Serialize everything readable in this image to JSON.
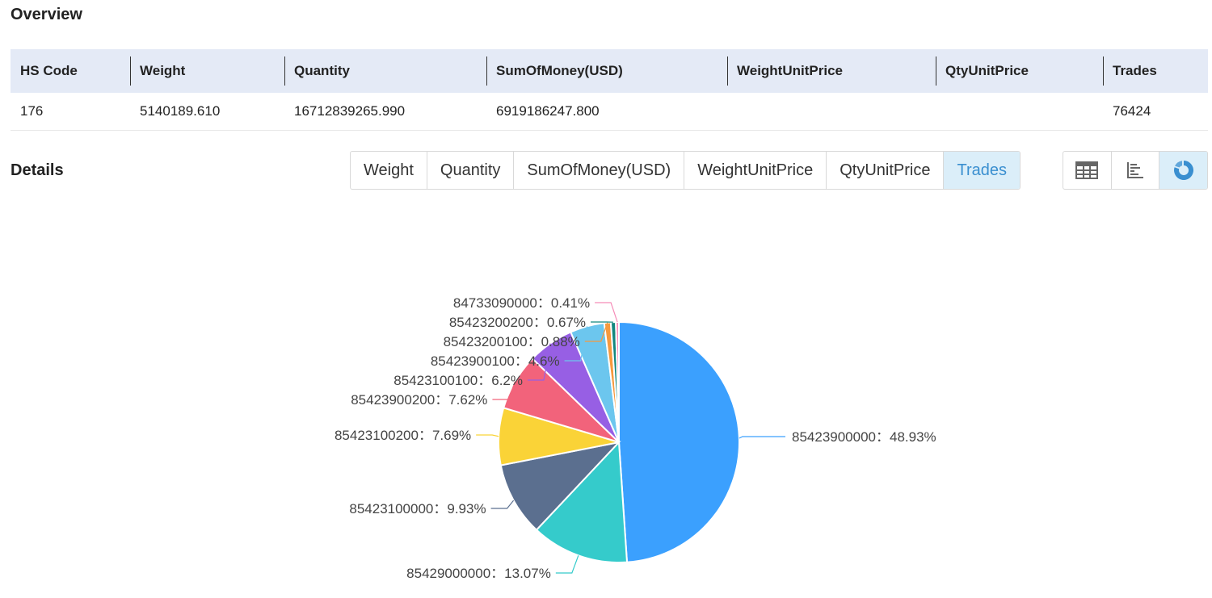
{
  "overview": {
    "title": "Overview",
    "headers": [
      "HS Code",
      "Weight",
      "Quantity",
      "SumOfMoney(USD)",
      "WeightUnitPrice",
      "QtyUnitPrice",
      "Trades"
    ],
    "row": [
      "176",
      "5140189.610",
      "16712839265.990",
      "6919186247.800",
      "",
      "",
      "76424"
    ]
  },
  "details": {
    "title": "Details",
    "tabs": [
      "Weight",
      "Quantity",
      "SumOfMoney(USD)",
      "WeightUnitPrice",
      "QtyUnitPrice",
      "Trades"
    ],
    "active_tab": "Trades",
    "views": [
      {
        "icon": "table-icon",
        "active": false
      },
      {
        "icon": "bar-chart-icon",
        "active": false
      },
      {
        "icon": "pie-chart-icon",
        "active": true
      }
    ]
  },
  "colors": {
    "accent": "#3a8fd0",
    "header_bg": "#e4eaf6",
    "active_bg": "#dbeef9"
  },
  "chart_data": {
    "type": "pie",
    "title": "",
    "label_separator": "：",
    "slices": [
      {
        "name": "85423900000",
        "value": 48.93,
        "label": "48.93%",
        "color": "#3ba0fe"
      },
      {
        "name": "85429000000",
        "value": 13.07,
        "label": "13.07%",
        "color": "#35cbcb"
      },
      {
        "name": "85423100000",
        "value": 9.93,
        "label": "9.93%",
        "color": "#5b6f8f"
      },
      {
        "name": "85423100200",
        "value": 7.69,
        "label": "7.69%",
        "color": "#fad337"
      },
      {
        "name": "85423900200",
        "value": 7.62,
        "label": "7.62%",
        "color": "#f2637b"
      },
      {
        "name": "85423100100",
        "value": 6.2,
        "label": "6.2%",
        "color": "#975fe4"
      },
      {
        "name": "85423900100",
        "value": 4.6,
        "label": "4.6%",
        "color": "#6cc6ee"
      },
      {
        "name": "85423200100",
        "value": 0.88,
        "label": "0.88%",
        "color": "#f6993e"
      },
      {
        "name": "85423200200",
        "value": 0.67,
        "label": "0.67%",
        "color": "#12877f"
      },
      {
        "name": "84733090000",
        "value": 0.41,
        "label": "0.41%",
        "color": "#f58cb7"
      }
    ]
  }
}
